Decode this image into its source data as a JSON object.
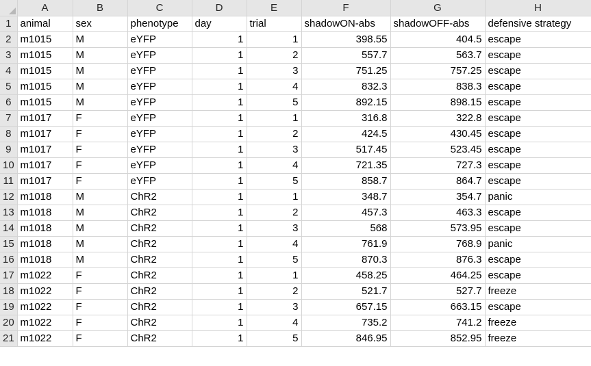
{
  "columns": [
    "A",
    "B",
    "C",
    "D",
    "E",
    "F",
    "G",
    "H"
  ],
  "header_row": {
    "row_number": "1",
    "cells": [
      "animal",
      "sex",
      "phenotype",
      "day",
      "trial",
      "shadowON-abs",
      "shadowOFF-abs",
      "defensive strategy"
    ]
  },
  "rows": [
    {
      "row_number": "2",
      "cells": [
        "m1015",
        "M",
        "eYFP",
        "1",
        "1",
        "398.55",
        "404.5",
        "escape"
      ]
    },
    {
      "row_number": "3",
      "cells": [
        "m1015",
        "M",
        "eYFP",
        "1",
        "2",
        "557.7",
        "563.7",
        "escape"
      ]
    },
    {
      "row_number": "4",
      "cells": [
        "m1015",
        "M",
        "eYFP",
        "1",
        "3",
        "751.25",
        "757.25",
        "escape"
      ]
    },
    {
      "row_number": "5",
      "cells": [
        "m1015",
        "M",
        "eYFP",
        "1",
        "4",
        "832.3",
        "838.3",
        "escape"
      ]
    },
    {
      "row_number": "6",
      "cells": [
        "m1015",
        "M",
        "eYFP",
        "1",
        "5",
        "892.15",
        "898.15",
        "escape"
      ]
    },
    {
      "row_number": "7",
      "cells": [
        "m1017",
        "F",
        "eYFP",
        "1",
        "1",
        "316.8",
        "322.8",
        "escape"
      ]
    },
    {
      "row_number": "8",
      "cells": [
        "m1017",
        "F",
        "eYFP",
        "1",
        "2",
        "424.5",
        "430.45",
        "escape"
      ]
    },
    {
      "row_number": "9",
      "cells": [
        "m1017",
        "F",
        "eYFP",
        "1",
        "3",
        "517.45",
        "523.45",
        "escape"
      ]
    },
    {
      "row_number": "10",
      "cells": [
        "m1017",
        "F",
        "eYFP",
        "1",
        "4",
        "721.35",
        "727.3",
        "escape"
      ]
    },
    {
      "row_number": "11",
      "cells": [
        "m1017",
        "F",
        "eYFP",
        "1",
        "5",
        "858.7",
        "864.7",
        "escape"
      ]
    },
    {
      "row_number": "12",
      "cells": [
        "m1018",
        "M",
        "ChR2",
        "1",
        "1",
        "348.7",
        "354.7",
        "panic"
      ]
    },
    {
      "row_number": "13",
      "cells": [
        "m1018",
        "M",
        "ChR2",
        "1",
        "2",
        "457.3",
        "463.3",
        "escape"
      ]
    },
    {
      "row_number": "14",
      "cells": [
        "m1018",
        "M",
        "ChR2",
        "1",
        "3",
        "568",
        "573.95",
        "escape"
      ]
    },
    {
      "row_number": "15",
      "cells": [
        "m1018",
        "M",
        "ChR2",
        "1",
        "4",
        "761.9",
        "768.9",
        "panic"
      ]
    },
    {
      "row_number": "16",
      "cells": [
        "m1018",
        "M",
        "ChR2",
        "1",
        "5",
        "870.3",
        "876.3",
        "escape"
      ]
    },
    {
      "row_number": "17",
      "cells": [
        "m1022",
        "F",
        "ChR2",
        "1",
        "1",
        "458.25",
        "464.25",
        "escape"
      ]
    },
    {
      "row_number": "18",
      "cells": [
        "m1022",
        "F",
        "ChR2",
        "1",
        "2",
        "521.7",
        "527.7",
        "freeze"
      ]
    },
    {
      "row_number": "19",
      "cells": [
        "m1022",
        "F",
        "ChR2",
        "1",
        "3",
        "657.15",
        "663.15",
        "escape"
      ]
    },
    {
      "row_number": "20",
      "cells": [
        "m1022",
        "F",
        "ChR2",
        "1",
        "4",
        "735.2",
        "741.2",
        "freeze"
      ]
    },
    {
      "row_number": "21",
      "cells": [
        "m1022",
        "F",
        "ChR2",
        "1",
        "5",
        "846.95",
        "852.95",
        "freeze"
      ]
    }
  ],
  "numeric_columns": [
    3,
    4,
    5,
    6
  ]
}
